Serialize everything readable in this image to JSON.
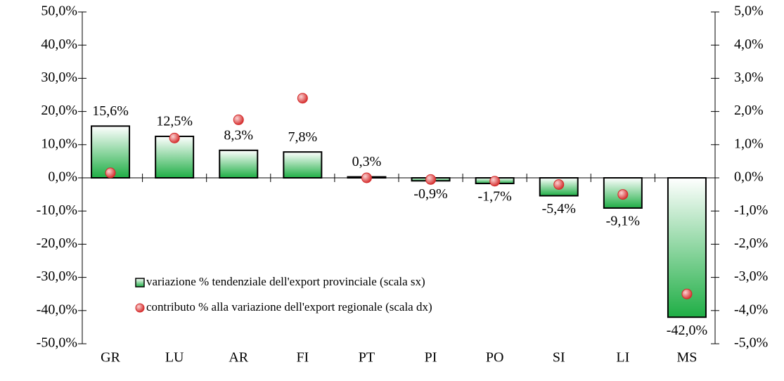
{
  "chart_data": {
    "type": "bar",
    "categories": [
      "GR",
      "LU",
      "AR",
      "FI",
      "PT",
      "PI",
      "PO",
      "SI",
      "LI",
      "MS"
    ],
    "series": [
      {
        "name": "variazione % tendenziale dell'export provinciale (scala sx)",
        "type": "bar",
        "color": "#1fae45",
        "values": [
          15.6,
          12.5,
          8.3,
          7.8,
          0.3,
          -0.9,
          -1.7,
          -5.4,
          -9.1,
          -42.0
        ],
        "value_labels": [
          "15,6%",
          "12,5%",
          "8,3%",
          "7,8%",
          "0,3%",
          "-0,9%",
          "-1,7%",
          "-5,4%",
          "-9,1%",
          "-42,0%"
        ]
      },
      {
        "name": "contributo % alla variazione dell'export regionale (scala dx)",
        "type": "scatter",
        "axis": "y2",
        "color": "#d42a2a",
        "values": [
          0.15,
          1.2,
          1.75,
          2.4,
          0.0,
          -0.05,
          -0.1,
          -0.2,
          -0.5,
          -3.5
        ]
      }
    ],
    "ylim": [
      -50,
      50
    ],
    "yticks": [
      {
        "value": -50,
        "label": "-50,0%"
      },
      {
        "value": -40,
        "label": "-40,0%"
      },
      {
        "value": -30,
        "label": "-30,0%"
      },
      {
        "value": -20,
        "label": "-20,0%"
      },
      {
        "value": -10,
        "label": "-10,0%"
      },
      {
        "value": 0,
        "label": "0,0%"
      },
      {
        "value": 10,
        "label": "10,0%"
      },
      {
        "value": 20,
        "label": "20,0%"
      },
      {
        "value": 30,
        "label": "30,0%"
      },
      {
        "value": 40,
        "label": "40,0%"
      },
      {
        "value": 50,
        "label": "50,0%"
      }
    ],
    "y2lim": [
      -5,
      5
    ],
    "y2ticks": [
      {
        "value": -5,
        "label": "-5,0%"
      },
      {
        "value": -4,
        "label": "-4,0%"
      },
      {
        "value": -3,
        "label": "-3,0%"
      },
      {
        "value": -2,
        "label": "-2,0%"
      },
      {
        "value": -1,
        "label": "-1,0%"
      },
      {
        "value": 0,
        "label": "0,0%"
      },
      {
        "value": 1,
        "label": "1,0%"
      },
      {
        "value": 2,
        "label": "2,0%"
      },
      {
        "value": 3,
        "label": "3,0%"
      },
      {
        "value": 4,
        "label": "4,0%"
      },
      {
        "value": 5,
        "label": "5,0%"
      }
    ],
    "grid": false
  }
}
